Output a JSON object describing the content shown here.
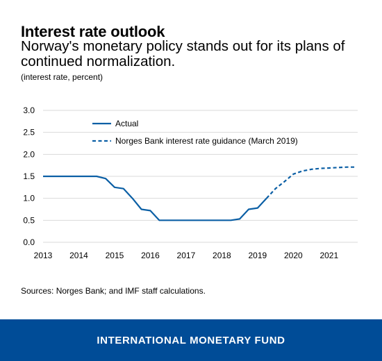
{
  "header": {
    "title": "Interest rate outlook",
    "subtitle": "Norway's monetary policy stands out for its plans of continued normalization.",
    "unit": "(interest rate, percent)"
  },
  "source": "Sources: Norges Bank; and IMF staff calculations.",
  "footer": {
    "label": "INTERNATIONAL MONETARY FUND",
    "background": "#004c97"
  },
  "chart_data": {
    "type": "line",
    "title": "Interest rate outlook",
    "ylabel": "",
    "xlabel": "",
    "ylim": [
      0,
      3
    ],
    "xlim": [
      2013,
      2021.8
    ],
    "yticks": [
      "0.0",
      "0.5",
      "1.0",
      "1.5",
      "2.0",
      "2.5",
      "3.0"
    ],
    "xticks": [
      "2013",
      "2014",
      "2015",
      "2016",
      "2017",
      "2018",
      "2019",
      "2020",
      "2021"
    ],
    "grid": true,
    "legend_position": "top-left",
    "series": [
      {
        "name": "Actual",
        "style": "solid",
        "color": "#0b5fa5",
        "x": [
          2013.0,
          2014.0,
          2014.5,
          2014.75,
          2015.0,
          2015.25,
          2015.5,
          2015.75,
          2016.0,
          2016.25,
          2016.5,
          2017.0,
          2017.5,
          2018.0,
          2018.25,
          2018.5,
          2018.75,
          2019.0,
          2019.25
        ],
        "y": [
          1.5,
          1.5,
          1.5,
          1.45,
          1.25,
          1.22,
          1.0,
          0.75,
          0.72,
          0.5,
          0.5,
          0.5,
          0.5,
          0.5,
          0.5,
          0.53,
          0.75,
          0.78,
          1.0
        ]
      },
      {
        "name": "Norges Bank interest rate guidance (March 2019)",
        "style": "dashed",
        "color": "#0b5fa5",
        "x": [
          2019.25,
          2019.5,
          2019.75,
          2020.0,
          2020.25,
          2020.5,
          2020.75,
          2021.0,
          2021.25,
          2021.5,
          2021.75
        ],
        "y": [
          1.0,
          1.22,
          1.38,
          1.55,
          1.62,
          1.66,
          1.68,
          1.69,
          1.7,
          1.71,
          1.71
        ]
      }
    ]
  }
}
